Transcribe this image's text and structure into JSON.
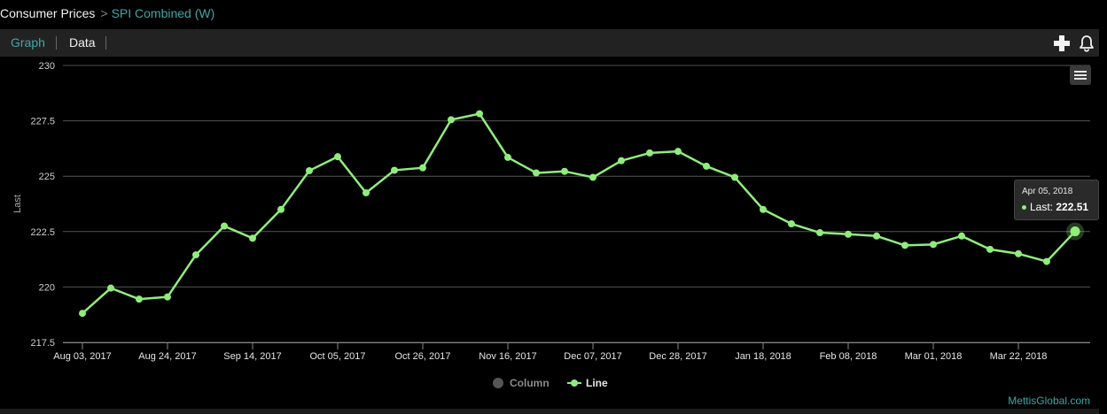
{
  "breadcrumb": {
    "root": "Consumer Prices",
    "separator": ">",
    "leaf": "SPI Combined (W)"
  },
  "tabs": {
    "graph": "Graph",
    "data": "Data"
  },
  "toolbar": {
    "add_icon": "plus-icon",
    "alert_icon": "bell-icon",
    "menu_icon": "hamburger-icon"
  },
  "colors": {
    "accent": "#3fa7a7",
    "series_line": "#90ed7d",
    "column_inactive": "#555555",
    "grid": "#555555"
  },
  "chart_data": {
    "type": "line",
    "ylabel": "Last",
    "xlabel": "",
    "ylim": [
      217.5,
      230
    ],
    "yticks": [
      217.5,
      220,
      222.5,
      225,
      227.5,
      230
    ],
    "ytick_labels": [
      "217.5",
      "220",
      "222.5",
      "225",
      "227.5",
      "230"
    ],
    "xtick_labels": [
      "Aug 03, 2017",
      "Aug 24, 2017",
      "Sep 14, 2017",
      "Oct 05, 2017",
      "Oct 26, 2017",
      "Nov 16, 2017",
      "Dec 07, 2017",
      "Dec 28, 2017",
      "Jan 18, 2018",
      "Feb 08, 2018",
      "Mar 01, 2018",
      "Mar 22, 2018"
    ],
    "x_start": "Aug 03, 2017",
    "x_step_days": 7,
    "grid": true,
    "legend_position": "bottom-center",
    "series": [
      {
        "name": "Line",
        "values": [
          218.81,
          219.95,
          219.45,
          219.55,
          221.45,
          222.75,
          222.2,
          223.5,
          225.25,
          225.88,
          224.25,
          225.27,
          225.38,
          227.55,
          227.82,
          225.85,
          225.15,
          225.22,
          224.95,
          225.7,
          226.05,
          226.12,
          225.45,
          224.95,
          223.5,
          222.85,
          222.45,
          222.38,
          222.3,
          221.88,
          221.92,
          222.3,
          221.7,
          221.5,
          221.15,
          222.51
        ]
      }
    ],
    "legend": [
      {
        "label": "Column",
        "active": false
      },
      {
        "label": "Line",
        "active": true
      }
    ],
    "tooltip": {
      "date": "Apr 05, 2018",
      "label": "Last:",
      "value": "222.51"
    }
  },
  "credit": "MettisGlobal.com"
}
